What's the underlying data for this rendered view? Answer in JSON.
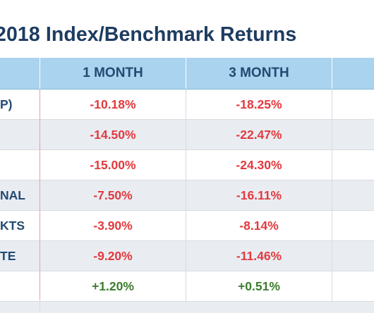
{
  "title": "2018 Index/Benchmark Returns",
  "header": {
    "columns": [
      "",
      "1 MONTH",
      "3 MONTH",
      ""
    ]
  },
  "rows": [
    {
      "label": "P)",
      "one_month": "-10.18%",
      "three_month": "-18.25%",
      "one_sign": "neg",
      "three_sign": "neg"
    },
    {
      "label": "",
      "one_month": "-14.50%",
      "three_month": "-22.47%",
      "one_sign": "neg",
      "three_sign": "neg"
    },
    {
      "label": "",
      "one_month": "-15.00%",
      "three_month": "-24.30%",
      "one_sign": "neg",
      "three_sign": "neg"
    },
    {
      "label": "NAL",
      "one_month": "-7.50%",
      "three_month": "-16.11%",
      "one_sign": "neg",
      "three_sign": "neg"
    },
    {
      "label": "KTS",
      "one_month": "-3.90%",
      "three_month": "-8.14%",
      "one_sign": "neg",
      "three_sign": "neg"
    },
    {
      "label": "TE",
      "one_month": "-9.20%",
      "three_month": "-11.46%",
      "one_sign": "neg",
      "three_sign": "neg"
    },
    {
      "label": "",
      "one_month": "+1.20%",
      "three_month": "+0.51%",
      "one_sign": "pos",
      "three_sign": "pos"
    }
  ],
  "colors": {
    "title": "#1d3c61",
    "header_bg": "#a9d3ee",
    "header_text": "#234a72",
    "negative": "#e23a3e",
    "positive": "#3d7d2e",
    "row_shade": "#e9edf2",
    "divider": "#f19aa0"
  },
  "chart_data": {
    "type": "table",
    "title": "2018 Index/Benchmark Returns",
    "columns": [
      "",
      "1 MONTH",
      "3 MONTH",
      ""
    ],
    "rows": [
      [
        "P)",
        -10.18,
        -18.25
      ],
      [
        "",
        -14.5,
        -22.47
      ],
      [
        "",
        -15.0,
        -24.3
      ],
      [
        "NAL",
        -7.5,
        -16.11
      ],
      [
        "KTS",
        -3.9,
        -8.14
      ],
      [
        "TE",
        -9.2,
        -11.46
      ],
      [
        "",
        1.2,
        0.51
      ]
    ],
    "units": "%"
  }
}
